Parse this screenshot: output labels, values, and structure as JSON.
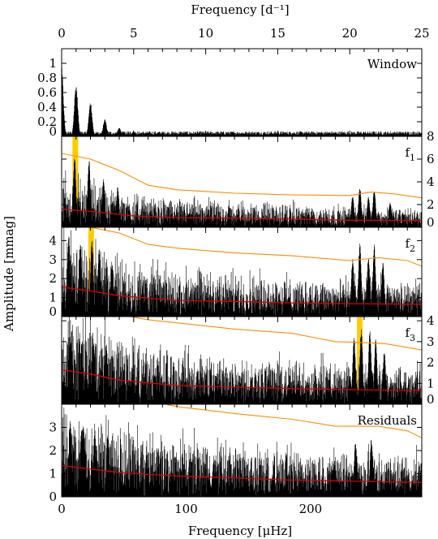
{
  "chart_data": {
    "type": "line",
    "top_axis": {
      "label": "Frequency [d⁻¹]",
      "ticks": [
        0,
        5,
        10,
        15,
        20,
        25
      ],
      "range": [
        0,
        25
      ]
    },
    "bottom_axis": {
      "label": "Frequency [μHz]",
      "ticks": [
        0,
        100,
        200
      ],
      "range": [
        0,
        289.35
      ]
    },
    "y_axis_label": "Amplitude [mmag]",
    "colors": {
      "spectrum": "#000000",
      "noise_level": "#dd0000",
      "significance_threshold": "#ff8c00",
      "peak_marker": "#ffcc00"
    },
    "panels": [
      {
        "label": "Window",
        "subscript": "",
        "y_axis_side": "left",
        "ylim": [
          0,
          1.2
        ],
        "yticks": [
          0,
          0.2,
          0.4,
          0.6,
          0.8,
          1
        ],
        "yticklabels": [
          "0",
          "0.2",
          "0.4",
          "0.6",
          "0.8",
          "1"
        ],
        "peaks": [
          {
            "x": 0,
            "y": 0.95
          },
          {
            "x": 1.0,
            "y": 0.72
          },
          {
            "x": 2.0,
            "y": 0.47
          },
          {
            "x": 3.0,
            "y": 0.24
          },
          {
            "x": 4.0,
            "y": 0.12
          },
          {
            "x": 5.0,
            "y": 0.07
          }
        ],
        "noise_level": [],
        "threshold": [],
        "highlight_x": null
      },
      {
        "label": "f",
        "subscript": "1",
        "y_axis_side": "right",
        "ylim": [
          0,
          8
        ],
        "yticks": [
          0,
          2,
          4,
          6,
          8
        ],
        "yticklabels": [
          "0",
          "2",
          "4",
          "6",
          "8"
        ],
        "peaks": [
          {
            "x": 0.9,
            "y": 6.2
          },
          {
            "x": 1.9,
            "y": 6.1
          },
          {
            "x": 2.9,
            "y": 4.3
          },
          {
            "x": 3.9,
            "y": 3.5
          },
          {
            "x": 20.2,
            "y": 2.8
          },
          {
            "x": 20.7,
            "y": 3.6
          },
          {
            "x": 21.3,
            "y": 2.7
          },
          {
            "x": 21.7,
            "y": 3.4
          },
          {
            "x": 22.8,
            "y": 2.3
          }
        ],
        "noise_level": [
          [
            0,
            1.6
          ],
          [
            2,
            1.4
          ],
          [
            5,
            1.0
          ],
          [
            8,
            0.85
          ],
          [
            12,
            0.8
          ],
          [
            16,
            0.72
          ],
          [
            20,
            0.62
          ],
          [
            25,
            0.6
          ]
        ],
        "threshold": [
          [
            0,
            6.5
          ],
          [
            2,
            6.0
          ],
          [
            4,
            5.0
          ],
          [
            6,
            3.7
          ],
          [
            8,
            3.3
          ],
          [
            12,
            3.0
          ],
          [
            16,
            2.85
          ],
          [
            20,
            2.8
          ],
          [
            21.5,
            3.1
          ],
          [
            23,
            2.95
          ],
          [
            25,
            2.6
          ]
        ],
        "highlight_x": 0.95
      },
      {
        "label": "f",
        "subscript": "2",
        "y_axis_side": "left",
        "ylim": [
          0,
          4.7
        ],
        "yticks": [
          0,
          1,
          2,
          3,
          4
        ],
        "yticklabels": [
          "0",
          "1",
          "2",
          "3",
          "4"
        ],
        "peaks": [
          {
            "x": 0.5,
            "y": 4.3
          },
          {
            "x": 1.3,
            "y": 4.0
          },
          {
            "x": 2.1,
            "y": 4.1
          },
          {
            "x": 2.6,
            "y": 3.6
          },
          {
            "x": 3.5,
            "y": 3.0
          },
          {
            "x": 20.2,
            "y": 3.1
          },
          {
            "x": 20.7,
            "y": 3.9
          },
          {
            "x": 21.3,
            "y": 3.2
          },
          {
            "x": 21.7,
            "y": 3.8
          },
          {
            "x": 22.3,
            "y": 2.9
          }
        ],
        "noise_level": [
          [
            0,
            1.55
          ],
          [
            2,
            1.35
          ],
          [
            4,
            1.1
          ],
          [
            8,
            0.85
          ],
          [
            12,
            0.8
          ],
          [
            16,
            0.72
          ],
          [
            20,
            0.68
          ],
          [
            25,
            0.65
          ]
        ],
        "threshold": [
          [
            0,
            4.8
          ],
          [
            2,
            4.7
          ],
          [
            4,
            4.4
          ],
          [
            6,
            3.8
          ],
          [
            8,
            3.6
          ],
          [
            12,
            3.35
          ],
          [
            16,
            3.2
          ],
          [
            20,
            2.95
          ],
          [
            22,
            3.1
          ],
          [
            24,
            2.95
          ],
          [
            25,
            2.65
          ]
        ],
        "highlight_x": 2.05
      },
      {
        "label": "f",
        "subscript": "3",
        "y_axis_side": "right",
        "ylim": [
          0,
          4.2
        ],
        "yticks": [
          0,
          1,
          2,
          3,
          4
        ],
        "yticklabels": [
          "0",
          "1",
          "2",
          "3",
          "4"
        ],
        "peaks": [
          {
            "x": 0.6,
            "y": 3.3
          },
          {
            "x": 1.4,
            "y": 3.1
          },
          {
            "x": 2.2,
            "y": 3.2
          },
          {
            "x": 3.1,
            "y": 2.9
          },
          {
            "x": 20.3,
            "y": 3.3
          },
          {
            "x": 20.8,
            "y": 3.7
          },
          {
            "x": 21.4,
            "y": 3.6
          },
          {
            "x": 21.8,
            "y": 3.2
          },
          {
            "x": 22.4,
            "y": 2.6
          }
        ],
        "noise_level": [
          [
            0,
            1.65
          ],
          [
            2,
            1.45
          ],
          [
            4,
            1.15
          ],
          [
            8,
            0.9
          ],
          [
            12,
            0.82
          ],
          [
            16,
            0.75
          ],
          [
            20,
            0.7
          ],
          [
            25,
            0.65
          ]
        ],
        "threshold": [
          [
            4,
            4.3
          ],
          [
            6,
            4.05
          ],
          [
            8,
            3.9
          ],
          [
            12,
            3.6
          ],
          [
            16,
            3.4
          ],
          [
            19,
            3.0
          ],
          [
            21,
            2.95
          ],
          [
            22.5,
            2.9
          ],
          [
            25,
            2.6
          ]
        ],
        "highlight_x": 20.7
      },
      {
        "label": "Residuals",
        "subscript": "",
        "y_axis_side": "left",
        "ylim": [
          0,
          4.0
        ],
        "yticks": [
          0,
          1,
          2,
          3
        ],
        "yticklabels": [
          "0",
          "1",
          "2",
          "3"
        ],
        "peaks": [
          {
            "x": 0.6,
            "y": 3.4
          },
          {
            "x": 1.5,
            "y": 3.2
          },
          {
            "x": 2.3,
            "y": 3.0
          },
          {
            "x": 3.2,
            "y": 2.8
          },
          {
            "x": 20.4,
            "y": 2.4
          },
          {
            "x": 21.5,
            "y": 2.5
          }
        ],
        "noise_level": [
          [
            0,
            1.35
          ],
          [
            2,
            1.2
          ],
          [
            4,
            1.05
          ],
          [
            8,
            0.9
          ],
          [
            12,
            0.82
          ],
          [
            16,
            0.72
          ],
          [
            20,
            0.68
          ],
          [
            25,
            0.62
          ]
        ],
        "threshold": [
          [
            6,
            4.15
          ],
          [
            8,
            3.9
          ],
          [
            12,
            3.6
          ],
          [
            16,
            3.35
          ],
          [
            19,
            3.05
          ],
          [
            22,
            3.05
          ],
          [
            24,
            2.85
          ],
          [
            25,
            2.55
          ]
        ],
        "highlight_x": null
      }
    ]
  }
}
